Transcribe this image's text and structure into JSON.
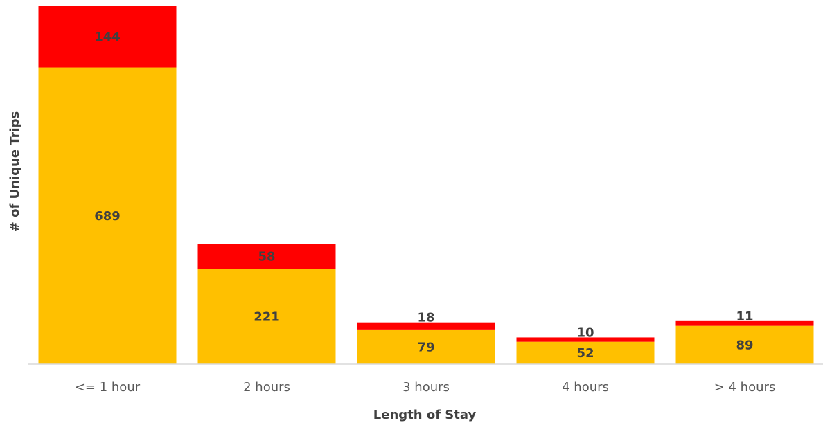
{
  "chart_data": {
    "type": "bar",
    "stacked": true,
    "categories": [
      "<= 1 hour",
      "2 hours",
      "3 hours",
      "4 hours",
      "> 4 hours"
    ],
    "series": [
      {
        "values": [
          689,
          221,
          79,
          52,
          89
        ],
        "color": "#FFC000"
      },
      {
        "values": [
          144,
          58,
          18,
          10,
          11
        ],
        "color": "#FF0000"
      }
    ],
    "title": "",
    "xlabel": "Length of Stay",
    "ylabel": "# of Unique Trips",
    "ylim": [
      0,
      833
    ],
    "grid": false,
    "legend": "none",
    "axis_color": "#D9D9D9"
  }
}
